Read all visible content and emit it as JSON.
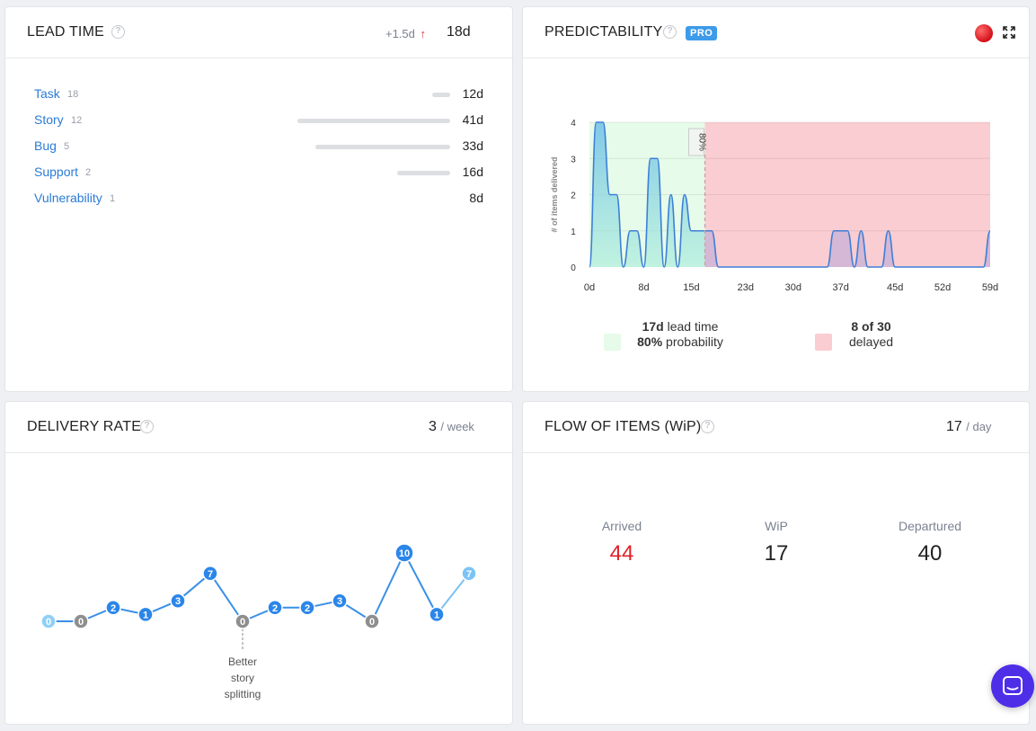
{
  "lead_time": {
    "title": "LEAD TIME",
    "delta": "+1.5d",
    "value": "18d",
    "items": [
      {
        "label": "Task",
        "count": "18",
        "value": "12d",
        "bar_fraction": 0.12
      },
      {
        "label": "Story",
        "count": "12",
        "value": "41d",
        "bar_fraction": 1.0
      },
      {
        "label": "Bug",
        "count": "5",
        "value": "33d",
        "bar_fraction": 0.88
      },
      {
        "label": "Support",
        "count": "2",
        "value": "16d",
        "bar_fraction": 0.35
      },
      {
        "label": "Vulnerability",
        "count": "1",
        "value": "8d",
        "bar_fraction": 0.0
      }
    ]
  },
  "predictability": {
    "title": "PREDICTABILITY",
    "badge": "PRO",
    "chart_data": {
      "type": "area",
      "ylabel": "# of items delivered",
      "xlabel": "",
      "x_ticks": [
        "0d",
        "8d",
        "15d",
        "23d",
        "30d",
        "37d",
        "45d",
        "52d",
        "59d"
      ],
      "y_ticks": [
        "0",
        "1",
        "2",
        "3",
        "4"
      ],
      "xlim": [
        0,
        59
      ],
      "ylim": [
        0,
        4
      ],
      "percentile_marker": {
        "label": "80%",
        "x": 17
      },
      "series": [
        {
          "points": [
            [
              0,
              0
            ],
            [
              1,
              4
            ],
            [
              2,
              4
            ],
            [
              3,
              2
            ],
            [
              4,
              2
            ],
            [
              5,
              0
            ],
            [
              6,
              1
            ],
            [
              7,
              1
            ],
            [
              8,
              0
            ],
            [
              9,
              3
            ],
            [
              10,
              3
            ],
            [
              11,
              0
            ],
            [
              12,
              2
            ],
            [
              13,
              0
            ],
            [
              14,
              2
            ],
            [
              15,
              1
            ],
            [
              16,
              1
            ],
            [
              17,
              1
            ],
            [
              18,
              1
            ],
            [
              19,
              0
            ],
            [
              20,
              0
            ],
            [
              21,
              0
            ],
            [
              22,
              0
            ],
            [
              23,
              0
            ],
            [
              24,
              0
            ],
            [
              25,
              0
            ],
            [
              26,
              0
            ],
            [
              27,
              0
            ],
            [
              28,
              0
            ],
            [
              29,
              0
            ],
            [
              30,
              0
            ],
            [
              31,
              0
            ],
            [
              32,
              0
            ],
            [
              33,
              0
            ],
            [
              34,
              0
            ],
            [
              35,
              0
            ],
            [
              36,
              1
            ],
            [
              37,
              1
            ],
            [
              38,
              1
            ],
            [
              39,
              0
            ],
            [
              40,
              1
            ],
            [
              41,
              0
            ],
            [
              42,
              0
            ],
            [
              43,
              0
            ],
            [
              44,
              1
            ],
            [
              45,
              0
            ],
            [
              46,
              0
            ],
            [
              47,
              0
            ],
            [
              48,
              0
            ],
            [
              49,
              0
            ],
            [
              50,
              0
            ],
            [
              51,
              0
            ],
            [
              52,
              0
            ],
            [
              53,
              0
            ],
            [
              54,
              0
            ],
            [
              55,
              0
            ],
            [
              56,
              0
            ],
            [
              57,
              0
            ],
            [
              58,
              0
            ],
            [
              59,
              1
            ]
          ]
        }
      ]
    },
    "legend": {
      "left_line1_bold": "17d",
      "left_line1_rest": " lead time",
      "left_line2_bold": "80%",
      "left_line2_rest": " probability",
      "right_line1_bold": "8 of 30",
      "right_line2": "delayed"
    },
    "colors": {
      "green_zone": "#e6fbe9",
      "red_zone": "#f9cdd1",
      "line": "#3d7fd8"
    }
  },
  "delivery_rate": {
    "title": "DELIVERY RATE",
    "value": "3",
    "unit": "/ week",
    "chart_data": {
      "type": "line",
      "values": [
        0,
        0,
        2,
        1,
        3,
        7,
        0,
        2,
        2,
        3,
        0,
        10,
        1,
        7
      ],
      "ylim": [
        0,
        10
      ],
      "annotation": {
        "index": 6,
        "lines": [
          "Better",
          "story",
          "splitting"
        ]
      }
    }
  },
  "flow": {
    "title": "FLOW OF ITEMS (WiP)",
    "value": "17",
    "unit": "/ day",
    "arrived_label": "Arrived",
    "arrived_value": "44",
    "wip_label": "WiP",
    "wip_value": "17",
    "departured_label": "Departured",
    "departured_value": "40"
  }
}
